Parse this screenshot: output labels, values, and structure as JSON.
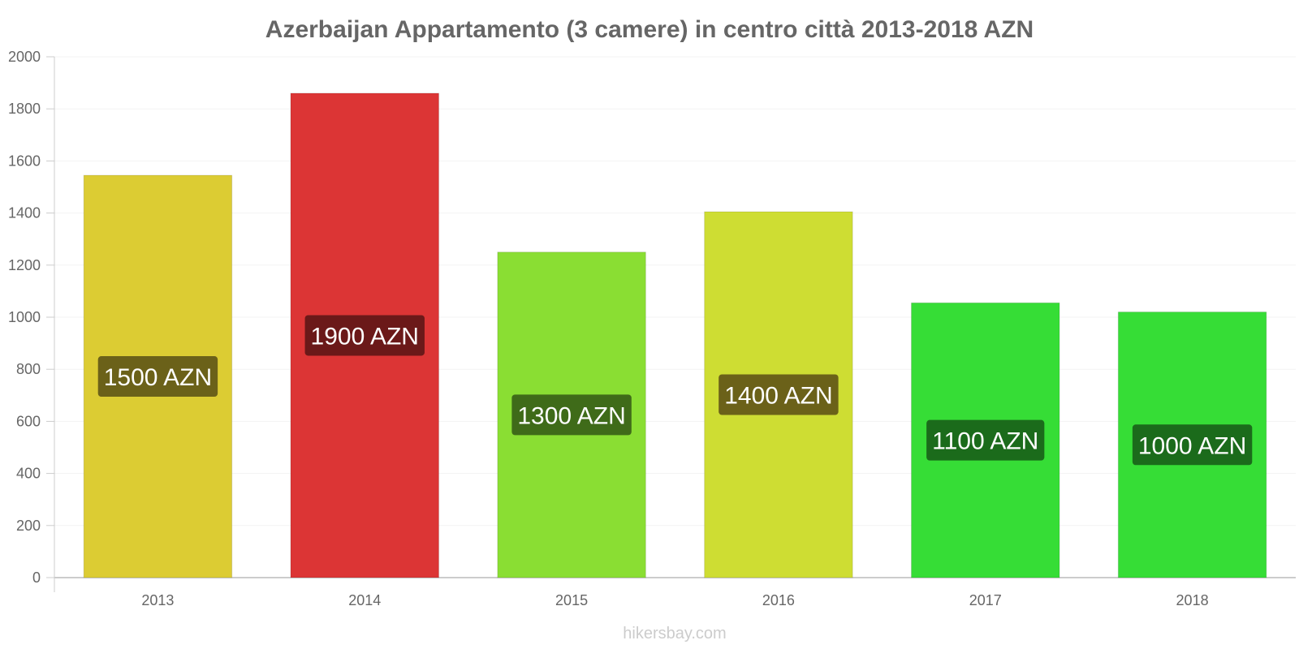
{
  "chart_data": {
    "type": "bar",
    "title": "Azerbaijan Appartamento (3 camere) in centro città 2013-2018 AZN",
    "categories": [
      "2013",
      "2014",
      "2015",
      "2016",
      "2017",
      "2018"
    ],
    "values": [
      1545,
      1860,
      1250,
      1405,
      1055,
      1020
    ],
    "data_labels": [
      "1500 AZN",
      "1900 AZN",
      "1300 AZN",
      "1400 AZN",
      "1100 AZN",
      "1000 AZN"
    ],
    "bar_colors": [
      "#dccc33",
      "#dc3535",
      "#8ade33",
      "#cedd33",
      "#36dd36",
      "#36dd36"
    ],
    "label_bg_colors": [
      "#6b6119",
      "#6b1919",
      "#3f6b19",
      "#6b6119",
      "#1b6b1b",
      "#1b6b1b"
    ],
    "xlabel": "",
    "ylabel": "",
    "ylim": [
      0,
      2000
    ],
    "yticks": [
      0,
      200,
      400,
      600,
      800,
      1000,
      1200,
      1400,
      1600,
      1800,
      2000
    ],
    "grid": true,
    "legend": "none"
  },
  "watermark": "hikersbay.com"
}
